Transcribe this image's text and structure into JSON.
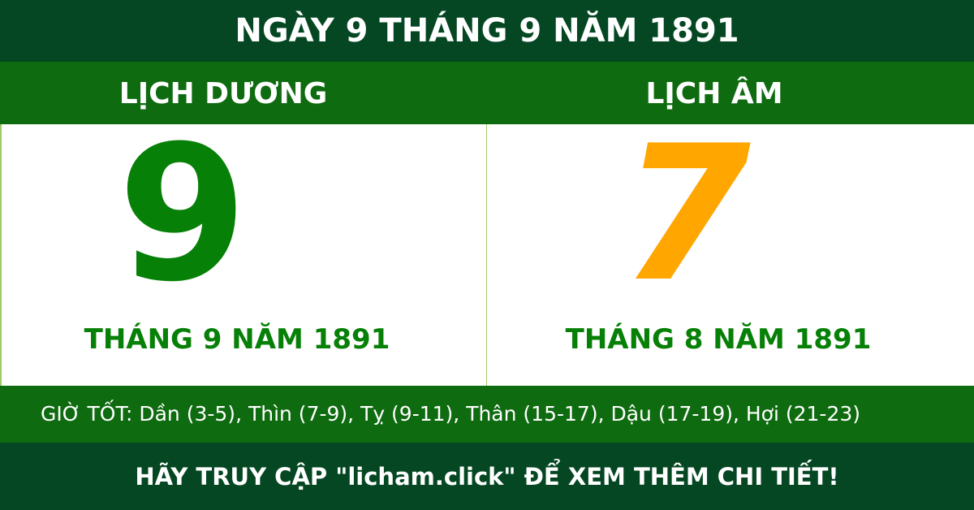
{
  "title": "NGÀY 9 THÁNG 9 NĂM 1891",
  "solar": {
    "label": "LỊCH DƯƠNG",
    "day": "9",
    "month_year": "THÁNG 9 NĂM 1891"
  },
  "lunar": {
    "label": "LỊCH ÂM",
    "day": "7",
    "month_year": "THÁNG 8 NĂM 1891"
  },
  "good_hours": "GIỜ TỐT: Dần (3-5), Thìn (7-9), Tỵ (9-11), Thân (15-17), Dậu (17-19), Hợi (21-23)",
  "footer": "HÃY TRUY CẬP \"licham.click\" ĐỂ XEM THÊM CHI TIẾT!",
  "colors": {
    "dark_green": "#044722",
    "green": "#0f6b10",
    "solar_digit": "#078007",
    "lunar_digit": "#ffa600"
  }
}
